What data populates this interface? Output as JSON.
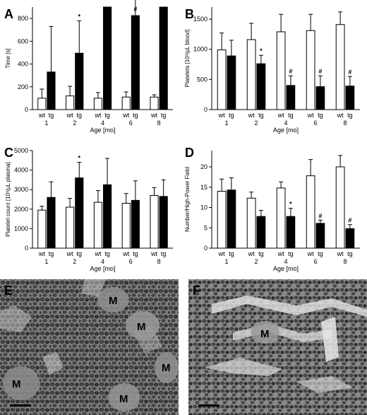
{
  "chart_data": [
    {
      "type": "bar",
      "panel": "A",
      "ylabel": "Time [s]",
      "xlabel": "Age [mo]",
      "ylim": [
        0,
        900
      ],
      "yticks": [
        0,
        200,
        400,
        600,
        800
      ],
      "categories": [
        "1",
        "2",
        "4",
        "6",
        "8"
      ],
      "group_labels": [
        "wt",
        "tg"
      ],
      "series": [
        {
          "name": "wt",
          "values": [
            100,
            120,
            100,
            110,
            110
          ],
          "errors": [
            80,
            85,
            50,
            45,
            20
          ]
        },
        {
          "name": "tg",
          "values": [
            330,
            495,
            900,
            825,
            900
          ],
          "errors": [
            400,
            285,
            0,
            145,
            0
          ]
        }
      ],
      "markers": [
        {
          "series": "tg",
          "category": "2",
          "text": "*"
        },
        {
          "series": "tg",
          "category": "4",
          "text": "#"
        },
        {
          "series": "tg",
          "category": "6",
          "text": "#"
        },
        {
          "series": "tg",
          "category": "8",
          "text": "#"
        }
      ]
    },
    {
      "type": "bar",
      "panel": "B",
      "ylabel": "Platelets [10³/µL blood]",
      "xlabel": "Age [mo]",
      "ylim": [
        0,
        1700
      ],
      "yticks": [
        0,
        500,
        1000,
        1500
      ],
      "categories": [
        "1",
        "2",
        "4",
        "6",
        "8"
      ],
      "group_labels": [
        "wt",
        "tg"
      ],
      "series": [
        {
          "name": "wt",
          "values": [
            990,
            1160,
            1290,
            1310,
            1410
          ],
          "errors": [
            280,
            270,
            290,
            270,
            210
          ]
        },
        {
          "name": "tg",
          "values": [
            890,
            760,
            400,
            380,
            390
          ],
          "errors": [
            260,
            140,
            160,
            180,
            160
          ]
        }
      ],
      "markers": [
        {
          "series": "tg",
          "category": "2",
          "text": "*"
        },
        {
          "series": "tg",
          "category": "4",
          "text": "#"
        },
        {
          "series": "tg",
          "category": "6",
          "text": "#"
        },
        {
          "series": "tg",
          "category": "8",
          "text": "#"
        }
      ]
    },
    {
      "type": "bar",
      "panel": "C",
      "ylabel": "Platelet count [10³/µL plasma]",
      "xlabel": "Age [mo]",
      "ylim": [
        0,
        5000
      ],
      "yticks": [
        0,
        1000,
        2000,
        3000,
        4000,
        5000
      ],
      "categories": [
        "1",
        "2",
        "4",
        "6",
        "8"
      ],
      "group_labels": [
        "wt",
        "tg"
      ],
      "series": [
        {
          "name": "wt",
          "values": [
            1950,
            2100,
            2350,
            2300,
            2700
          ],
          "errors": [
            200,
            450,
            600,
            500,
            400
          ]
        },
        {
          "name": "tg",
          "values": [
            2600,
            3600,
            3250,
            2450,
            2650
          ],
          "errors": [
            800,
            800,
            1350,
            1000,
            850
          ]
        }
      ],
      "markers": [
        {
          "series": "tg",
          "category": "2",
          "text": "*"
        }
      ]
    },
    {
      "type": "bar",
      "panel": "D",
      "ylabel": "Number/High-Power Field",
      "xlabel": "Age [mo]",
      "ylim": [
        0,
        24
      ],
      "yticks": [
        0,
        5,
        10,
        15,
        20
      ],
      "categories": [
        "1",
        "2",
        "4",
        "6",
        "8"
      ],
      "group_labels": [
        "wt",
        "tg"
      ],
      "series": [
        {
          "name": "wt",
          "values": [
            14,
            12.3,
            14.8,
            17.8,
            20
          ],
          "errors": [
            3,
            1.5,
            1.5,
            4,
            2.8
          ]
        },
        {
          "name": "tg",
          "values": [
            14.3,
            7.8,
            7.8,
            6.1,
            4.8
          ],
          "errors": [
            3,
            1.5,
            2,
            0.8,
            1
          ]
        }
      ],
      "markers": [
        {
          "series": "tg",
          "category": "4",
          "text": "*"
        },
        {
          "series": "tg",
          "category": "6",
          "text": "#"
        },
        {
          "series": "tg",
          "category": "8",
          "text": "#"
        }
      ]
    }
  ],
  "micrographs": [
    {
      "panel": "E",
      "labels": [
        "M",
        "M",
        "M",
        "M",
        "M"
      ]
    },
    {
      "panel": "F",
      "labels": [
        "M"
      ]
    }
  ]
}
